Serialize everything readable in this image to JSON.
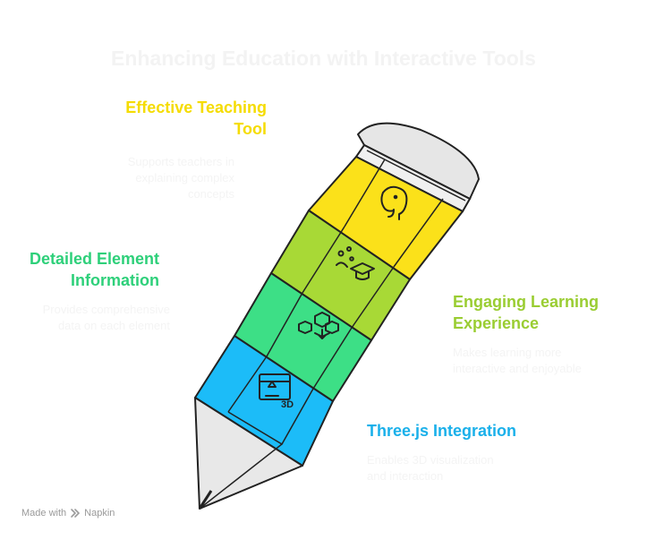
{
  "title": "Enhancing Education with Interactive Tools",
  "sections": [
    {
      "label_line1": "Effective Teaching",
      "label_line2": "Tool",
      "desc_line1": "Supports teachers in",
      "desc_line2": "explaining complex",
      "desc_line3": "concepts",
      "color": "#f8df1c",
      "icon": "elephant-icon"
    },
    {
      "label_line1": "Detailed Element",
      "label_line2": "Information",
      "desc_line1": "Provides comprehensive",
      "desc_line2": "data on each element",
      "color": "#3ddc84",
      "icon": "graduation-cap-icon"
    },
    {
      "label_line1": "Engaging Learning",
      "label_line2": "Experience",
      "desc_line1": "Makes learning more",
      "desc_line2": "interactive and enjoyable",
      "color": "#a6d43a",
      "icon": "network-cube-icon"
    },
    {
      "label_line1": "Three.js Integration",
      "desc_line1": "Enables 3D visualization",
      "desc_line2": "and interaction",
      "color": "#22b8e6",
      "icon": "3d-print-icon"
    }
  ],
  "footer": {
    "made_with": "Made with",
    "brand": "Napkin"
  },
  "colors": {
    "yellow": "#fbe11a",
    "lime": "#a8d936",
    "green": "#3ddf86",
    "blue": "#1cbcf8",
    "grey": "#e8e8e8",
    "outline": "#222222"
  }
}
